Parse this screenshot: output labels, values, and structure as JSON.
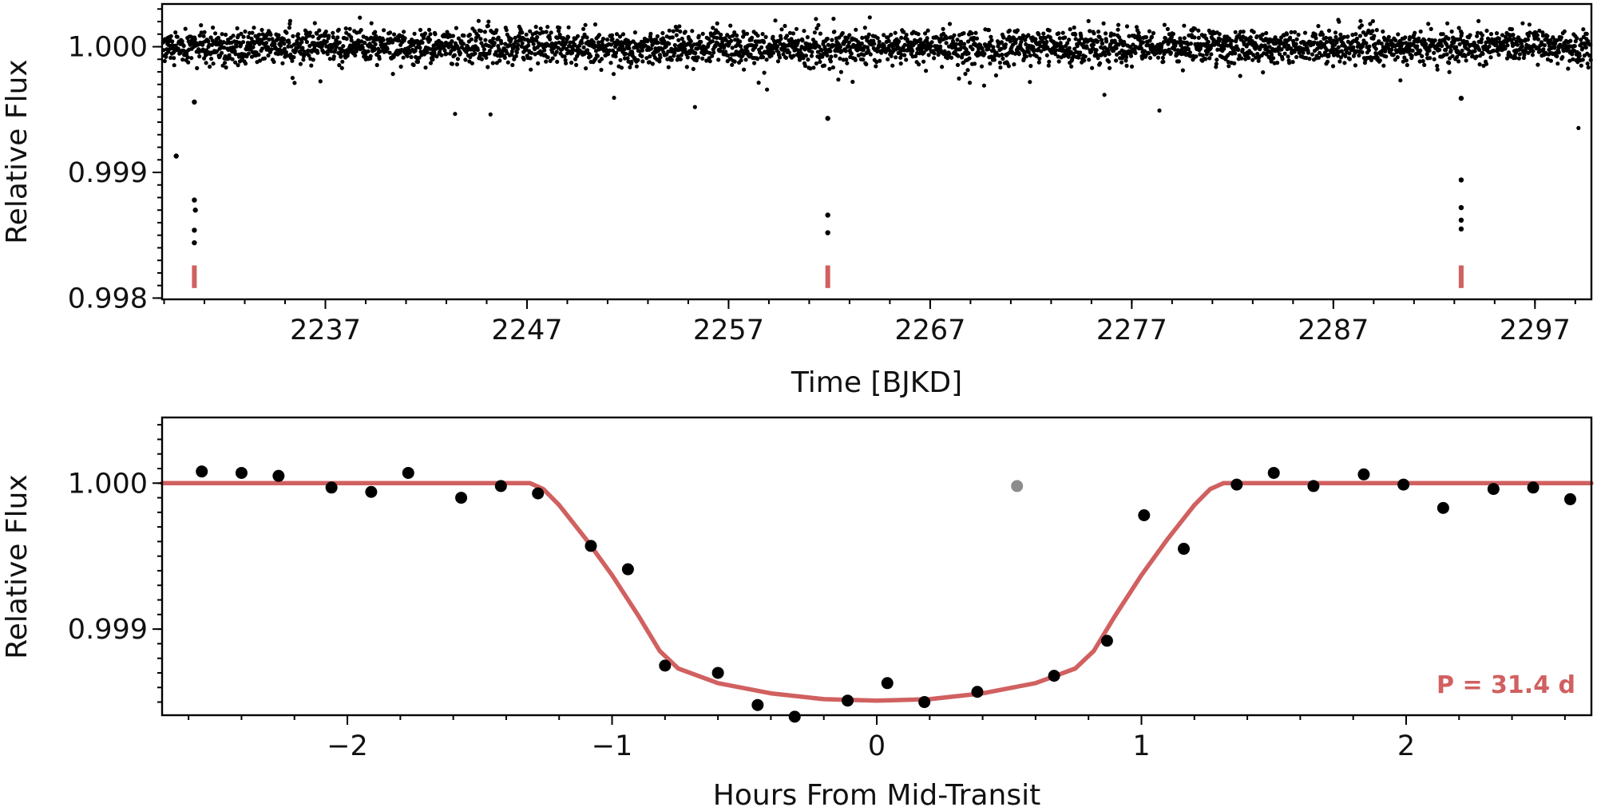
{
  "colors": {
    "model": "#d16060",
    "data": "#000000",
    "outlier": "#8c8c8c"
  },
  "chart_data": [
    {
      "type": "scatter",
      "xlabel": "Time [BJKD]",
      "ylabel": "Relative Flux",
      "xlim": [
        2228.9,
        2299.8
      ],
      "ylim": [
        0.99799,
        1.00034
      ],
      "xticks": [
        2237,
        2247,
        2257,
        2267,
        2277,
        2287,
        2297
      ],
      "xtick_labels": [
        "2237",
        "2247",
        "2257",
        "2267",
        "2277",
        "2287",
        "2297"
      ],
      "yticks": [
        0.998,
        0.999,
        1.0
      ],
      "ytick_labels": [
        "0.998",
        "0.999",
        "1.000"
      ],
      "baseline": {
        "x_start": 2228.9,
        "x_end": 2299.8,
        "level": 1.0,
        "scatter_sigma": 7e-05,
        "cadence_days": 0.0208
      },
      "in_transit_points": [
        {
          "x": 2229.6,
          "y": 0.99913
        },
        {
          "x": 2230.5,
          "y": 0.99956
        },
        {
          "x": 2230.5,
          "y": 0.99878
        },
        {
          "x": 2230.55,
          "y": 0.9987
        },
        {
          "x": 2230.5,
          "y": 0.99854
        },
        {
          "x": 2230.5,
          "y": 0.99844
        },
        {
          "x": 2261.92,
          "y": 0.99943
        },
        {
          "x": 2261.92,
          "y": 0.99866
        },
        {
          "x": 2261.92,
          "y": 0.99852
        },
        {
          "x": 2293.34,
          "y": 0.99959
        },
        {
          "x": 2293.34,
          "y": 0.99894
        },
        {
          "x": 2293.34,
          "y": 0.99872
        },
        {
          "x": 2293.34,
          "y": 0.99862
        },
        {
          "x": 2293.34,
          "y": 0.99855
        }
      ],
      "transit_markers": [
        2230.5,
        2261.92,
        2293.34
      ],
      "transit_marker_range": [
        0.99808,
        0.99826
      ]
    },
    {
      "type": "line",
      "xlabel": "Hours From Mid-Transit",
      "ylabel": "Relative Flux",
      "xlim": [
        -2.7,
        2.7
      ],
      "ylim": [
        0.99841,
        1.00045
      ],
      "xticks": [
        -2,
        -1,
        0,
        1,
        2
      ],
      "xtick_labels": [
        "−2",
        "−1",
        "0",
        "1",
        "2"
      ],
      "yticks": [
        0.999,
        1.0
      ],
      "ytick_labels": [
        "0.999",
        "1.000"
      ],
      "annotation": "P = 31.4 d",
      "binned_points": [
        {
          "x": -2.55,
          "y": 1.00008
        },
        {
          "x": -2.4,
          "y": 1.00007
        },
        {
          "x": -2.26,
          "y": 1.00005
        },
        {
          "x": -2.06,
          "y": 0.99997
        },
        {
          "x": -1.91,
          "y": 0.99994
        },
        {
          "x": -1.77,
          "y": 1.00007
        },
        {
          "x": -1.57,
          "y": 0.9999
        },
        {
          "x": -1.42,
          "y": 0.99998
        },
        {
          "x": -1.28,
          "y": 0.99993
        },
        {
          "x": -1.08,
          "y": 0.99957
        },
        {
          "x": -0.94,
          "y": 0.99941
        },
        {
          "x": -0.8,
          "y": 0.99875
        },
        {
          "x": -0.6,
          "y": 0.9987
        },
        {
          "x": -0.45,
          "y": 0.99848
        },
        {
          "x": -0.31,
          "y": 0.9984
        },
        {
          "x": -0.11,
          "y": 0.99851
        },
        {
          "x": 0.04,
          "y": 0.99863
        },
        {
          "x": 0.18,
          "y": 0.9985
        },
        {
          "x": 0.38,
          "y": 0.99857
        },
        {
          "x": 0.67,
          "y": 0.99868
        },
        {
          "x": 0.87,
          "y": 0.99892
        },
        {
          "x": 1.01,
          "y": 0.99978
        },
        {
          "x": 1.16,
          "y": 0.99955
        },
        {
          "x": 1.36,
          "y": 0.99999
        },
        {
          "x": 1.5,
          "y": 1.00007
        },
        {
          "x": 1.65,
          "y": 0.99998
        },
        {
          "x": 1.84,
          "y": 1.00006
        },
        {
          "x": 1.99,
          "y": 0.99999
        },
        {
          "x": 2.14,
          "y": 0.99983
        },
        {
          "x": 2.33,
          "y": 0.99996
        },
        {
          "x": 2.48,
          "y": 0.99997
        },
        {
          "x": 2.62,
          "y": 0.99989
        }
      ],
      "outlier_point": {
        "x": 0.53,
        "y": 0.99998
      },
      "model_curve": [
        {
          "x": -2.7,
          "y": 1.0
        },
        {
          "x": -1.31,
          "y": 1.0
        },
        {
          "x": -1.26,
          "y": 0.99996
        },
        {
          "x": -1.2,
          "y": 0.99985
        },
        {
          "x": -1.1,
          "y": 0.99962
        },
        {
          "x": -1.0,
          "y": 0.99937
        },
        {
          "x": -0.9,
          "y": 0.99909
        },
        {
          "x": -0.82,
          "y": 0.99885
        },
        {
          "x": -0.75,
          "y": 0.99873
        },
        {
          "x": -0.6,
          "y": 0.99863
        },
        {
          "x": -0.4,
          "y": 0.99856
        },
        {
          "x": -0.2,
          "y": 0.99852
        },
        {
          "x": 0.0,
          "y": 0.99851
        },
        {
          "x": 0.2,
          "y": 0.99852
        },
        {
          "x": 0.4,
          "y": 0.99856
        },
        {
          "x": 0.6,
          "y": 0.99863
        },
        {
          "x": 0.75,
          "y": 0.99873
        },
        {
          "x": 0.82,
          "y": 0.99885
        },
        {
          "x": 0.9,
          "y": 0.99909
        },
        {
          "x": 1.0,
          "y": 0.99937
        },
        {
          "x": 1.1,
          "y": 0.99962
        },
        {
          "x": 1.2,
          "y": 0.99985
        },
        {
          "x": 1.26,
          "y": 0.99996
        },
        {
          "x": 1.31,
          "y": 1.0
        },
        {
          "x": 2.7,
          "y": 1.0
        }
      ]
    }
  ]
}
